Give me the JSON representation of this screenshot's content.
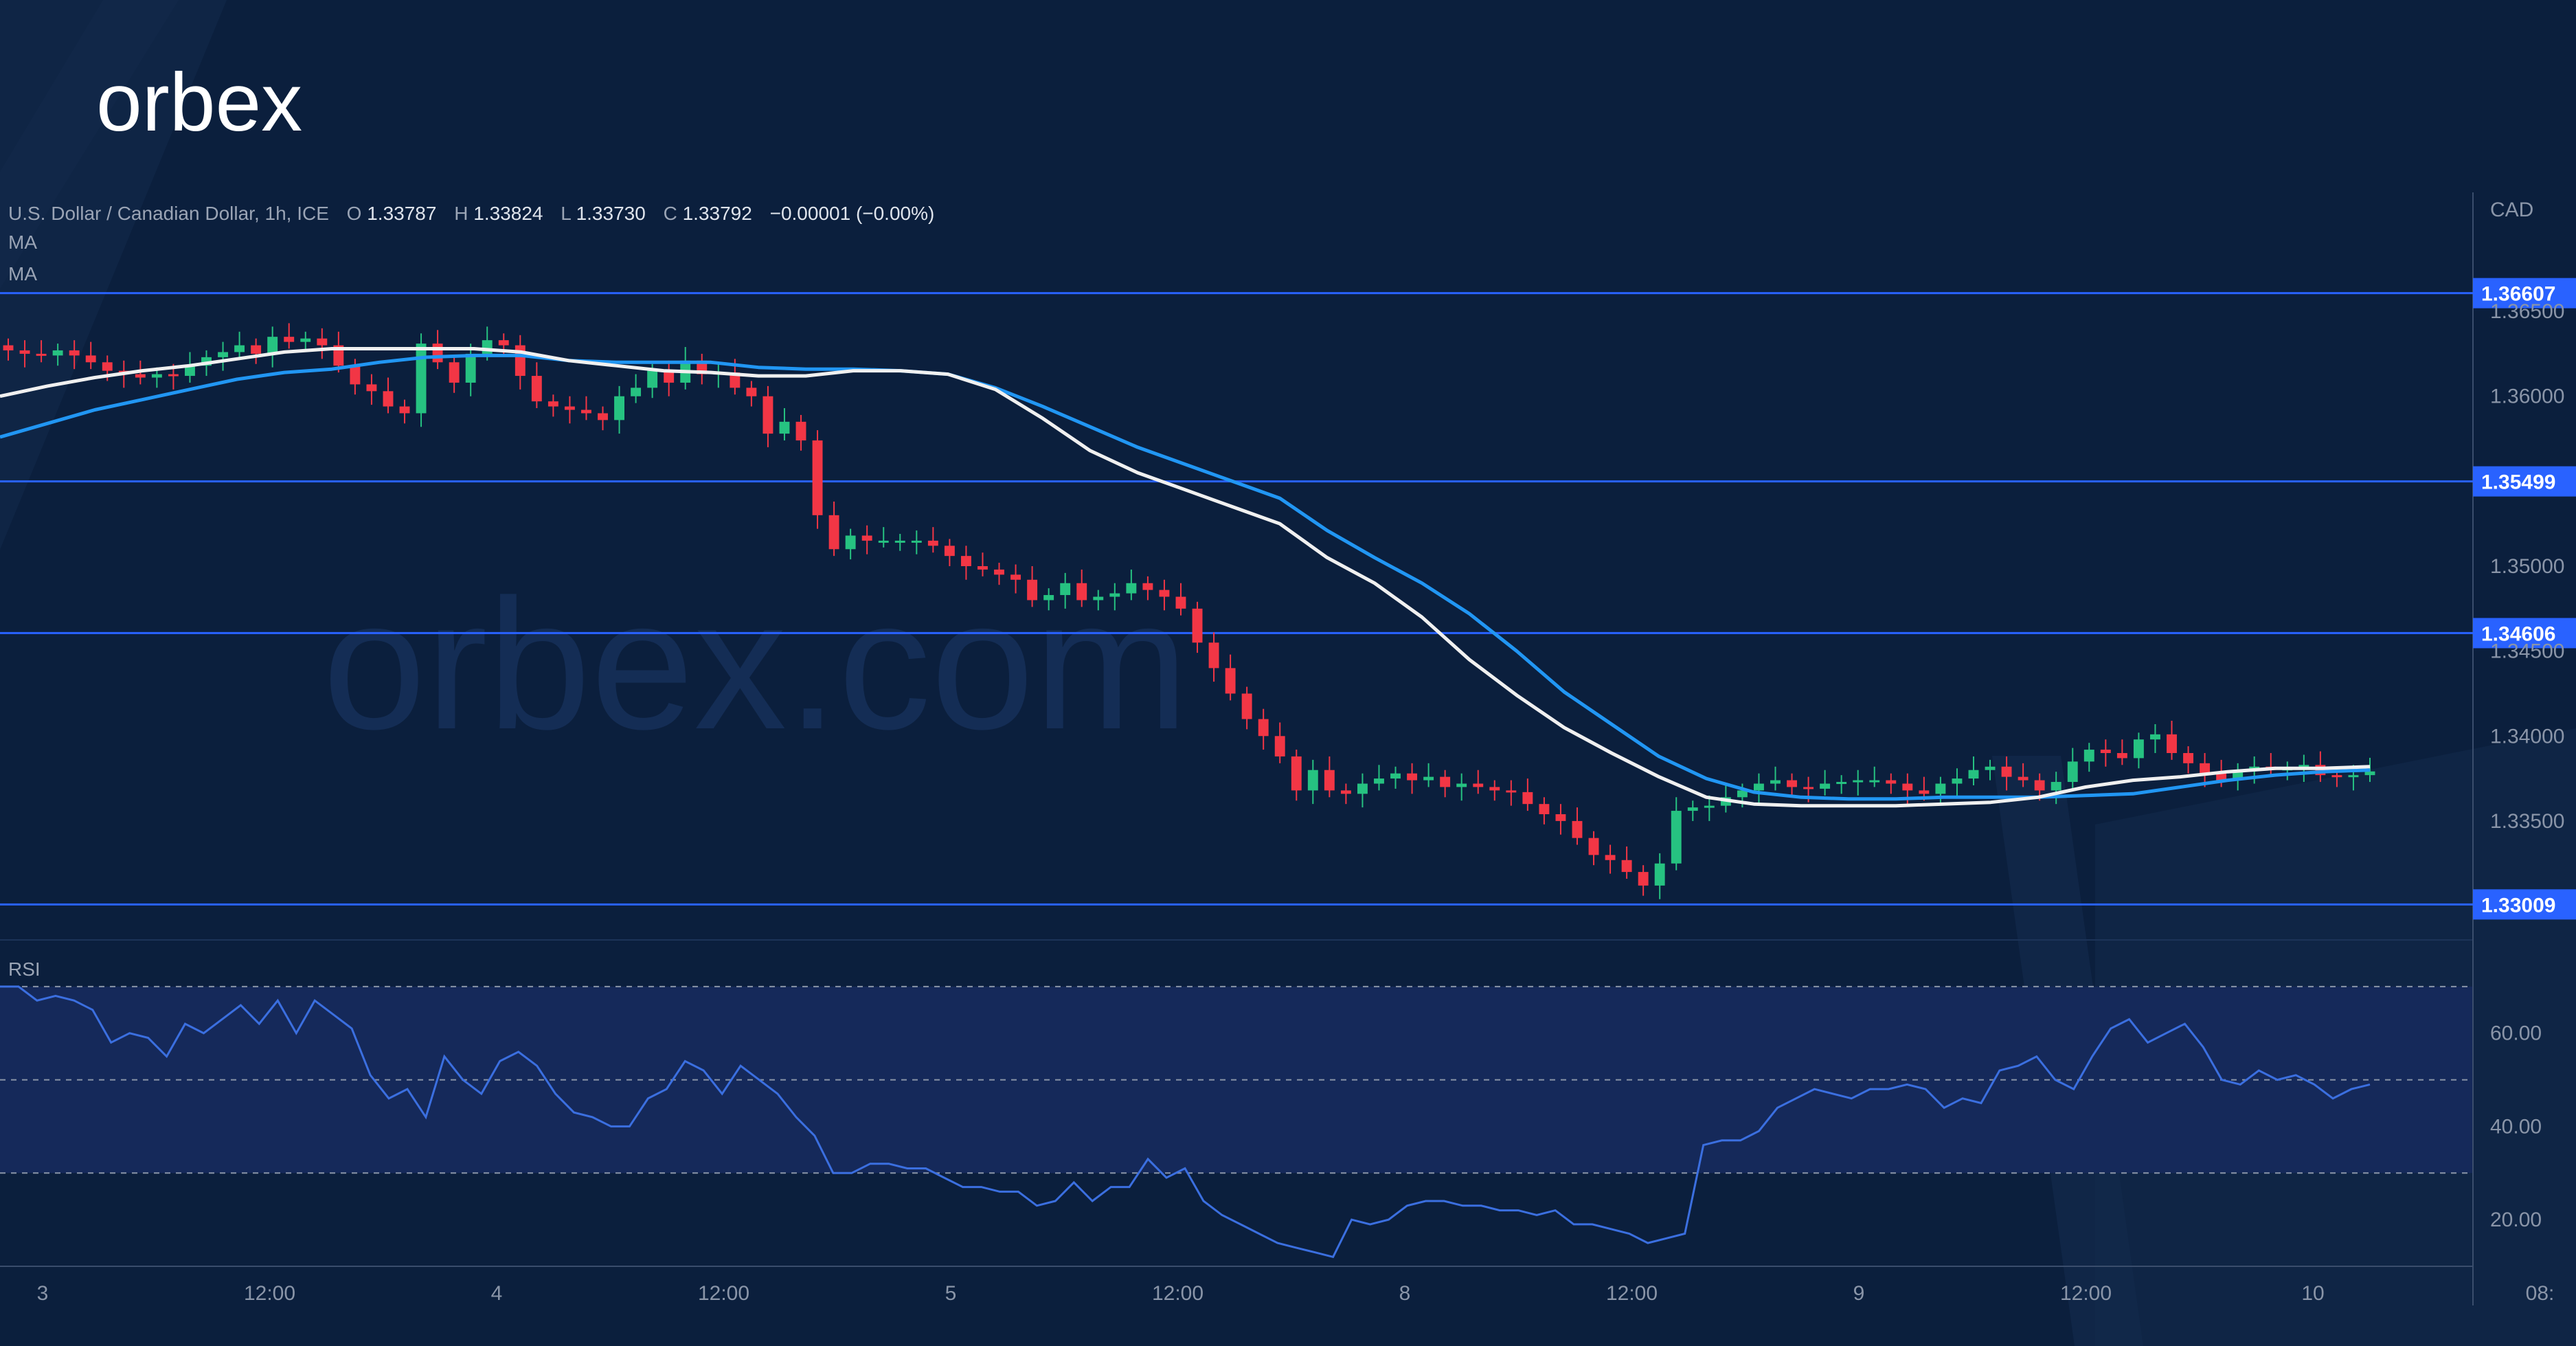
{
  "brand": {
    "logo_text": "orbex",
    "watermark": "orbex.com"
  },
  "colors": {
    "background": "#0b1f3d",
    "up_candle": "#26c281",
    "down_candle": "#f23645",
    "level_line": "#2962ff",
    "rsi_line": "#3b6fe0",
    "ma_fast": "#f0f0f0",
    "ma_slow": "#2196f3",
    "rsi_band": "#15295a"
  },
  "legend": {
    "symbol": "U.S. Dollar / Canadian Dollar, 1h, ICE",
    "o_label": "O",
    "o_value": "1.33787",
    "h_label": "H",
    "h_value": "1.33824",
    "l_label": "L",
    "l_value": "1.33730",
    "c_label": "C",
    "c_value": "1.33792",
    "change": "−0.00001 (−0.00%)",
    "ma1": "MA",
    "ma2": "MA",
    "rsi": "RSI"
  },
  "axis": {
    "currency": "CAD"
  },
  "chart_data": {
    "type": "candlestick",
    "title": "U.S. Dollar / Canadian Dollar, 1h, ICE",
    "price_axis": {
      "ticks": [
        "1.36500",
        "1.36000",
        "1.35000",
        "1.34500",
        "1.34000",
        "1.33500"
      ],
      "range": [
        1.328,
        1.372
      ]
    },
    "time_axis": {
      "ticks": [
        "3",
        "12:00",
        "4",
        "12:00",
        "5",
        "12:00",
        "8",
        "12:00",
        "9",
        "12:00",
        "10",
        "08:"
      ]
    },
    "horizontal_levels": [
      {
        "label": "1.36607",
        "value": 1.36607
      },
      {
        "label": "1.35499",
        "value": 1.35499
      },
      {
        "label": "1.34606",
        "value": 1.34606
      },
      {
        "label": "1.33009",
        "value": 1.33009
      }
    ],
    "close_series": [
      1.3627,
      1.3625,
      1.3624,
      1.3627,
      1.3624,
      1.362,
      1.3615,
      1.3613,
      1.3611,
      1.3613,
      1.3612,
      1.3618,
      1.3623,
      1.3626,
      1.363,
      1.3625,
      1.3635,
      1.3632,
      1.3634,
      1.363,
      1.3618,
      1.3607,
      1.3603,
      1.3594,
      1.359,
      1.3631,
      1.362,
      1.3608,
      1.3625,
      1.3633,
      1.363,
      1.3612,
      1.3597,
      1.3594,
      1.3592,
      1.359,
      1.3586,
      1.36,
      1.3605,
      1.3615,
      1.3608,
      1.3621,
      1.3613,
      1.3614,
      1.3605,
      1.36,
      1.3578,
      1.3585,
      1.3574,
      1.353,
      1.351,
      1.3518,
      1.3515,
      1.3515,
      1.3515,
      1.3515,
      1.3512,
      1.3506,
      1.35,
      1.3498,
      1.3495,
      1.3492,
      1.348,
      1.3483,
      1.349,
      1.348,
      1.3482,
      1.3484,
      1.349,
      1.3486,
      1.3482,
      1.3475,
      1.3455,
      1.344,
      1.3425,
      1.341,
      1.34,
      1.3388,
      1.3368,
      1.338,
      1.3368,
      1.3366,
      1.3372,
      1.3375,
      1.3378,
      1.3374,
      1.3376,
      1.337,
      1.3372,
      1.337,
      1.3368,
      1.3367,
      1.336,
      1.3354,
      1.335,
      1.334,
      1.333,
      1.3327,
      1.332,
      1.3312,
      1.3325,
      1.3356,
      1.3358,
      1.3359,
      1.3364,
      1.3368,
      1.3372,
      1.3374,
      1.337,
      1.3369,
      1.3372,
      1.3373,
      1.3374,
      1.3374,
      1.3372,
      1.3368,
      1.3366,
      1.3372,
      1.3375,
      1.338,
      1.3382,
      1.3376,
      1.3374,
      1.3368,
      1.3373,
      1.3385,
      1.3392,
      1.339,
      1.3387,
      1.3398,
      1.3401,
      1.339,
      1.3384,
      1.3378,
      1.3374,
      1.338,
      1.3382,
      1.338,
      1.3381,
      1.3383,
      1.3377,
      1.3376,
      1.3377,
      1.33792
    ],
    "ma_fast_series": [
      1.36,
      1.3606,
      1.3611,
      1.3615,
      1.3618,
      1.3622,
      1.3626,
      1.3628,
      1.3628,
      1.3628,
      1.3628,
      1.3626,
      1.3621,
      1.3618,
      1.3615,
      1.3614,
      1.3612,
      1.3612,
      1.3615,
      1.3615,
      1.3613,
      1.3604,
      1.3587,
      1.3568,
      1.3555,
      1.3545,
      1.3535,
      1.3525,
      1.3505,
      1.349,
      1.347,
      1.3445,
      1.3424,
      1.3405,
      1.339,
      1.3376,
      1.3364,
      1.336,
      1.3359,
      1.3359,
      1.3359,
      1.336,
      1.3361,
      1.3364,
      1.337,
      1.3374,
      1.3376,
      1.3379,
      1.3381,
      1.3381,
      1.3382
    ],
    "ma_slow_series": [
      1.3576,
      1.3584,
      1.3592,
      1.3598,
      1.3604,
      1.361,
      1.3614,
      1.3616,
      1.362,
      1.3623,
      1.3624,
      1.3624,
      1.3621,
      1.362,
      1.362,
      1.362,
      1.3617,
      1.3616,
      1.3616,
      1.3615,
      1.3613,
      1.3605,
      1.3594,
      1.3582,
      1.357,
      1.356,
      1.355,
      1.354,
      1.3521,
      1.3505,
      1.349,
      1.3472,
      1.345,
      1.3426,
      1.3407,
      1.3388,
      1.3375,
      1.3367,
      1.3364,
      1.3363,
      1.3363,
      1.3364,
      1.3364,
      1.3364,
      1.3365,
      1.3366,
      1.337,
      1.3374,
      1.3377,
      1.3379,
      1.338
    ],
    "rsi": {
      "ticks": [
        "60.00",
        "40.00",
        "20.00"
      ],
      "range": [
        10,
        80
      ],
      "band": [
        30,
        70
      ],
      "midline": 50,
      "values": [
        70,
        70,
        67,
        68,
        67,
        65,
        58,
        60,
        59,
        55,
        62,
        60,
        63,
        66,
        62,
        67,
        60,
        67,
        64,
        61,
        51,
        46,
        48,
        42,
        55,
        50,
        47,
        54,
        56,
        53,
        47,
        43,
        42,
        40,
        40,
        46,
        48,
        54,
        52,
        47,
        53,
        50,
        47,
        42,
        38,
        30,
        30,
        32,
        32,
        31,
        31,
        29,
        27,
        27,
        26,
        26,
        23,
        24,
        28,
        24,
        27,
        27,
        33,
        29,
        31,
        24,
        21,
        19,
        17,
        15,
        14,
        13,
        12,
        20,
        19,
        20,
        23,
        24,
        24,
        23,
        23,
        22,
        22,
        21,
        22,
        19,
        19,
        18,
        17,
        15,
        16,
        17,
        36,
        37,
        37,
        39,
        44,
        46,
        48,
        47,
        46,
        48,
        48,
        49,
        48,
        44,
        46,
        45,
        52,
        53,
        55,
        50,
        48,
        55,
        61,
        63,
        58,
        60,
        62,
        57,
        50,
        49,
        52,
        50,
        51,
        49,
        46,
        48,
        49
      ]
    }
  }
}
